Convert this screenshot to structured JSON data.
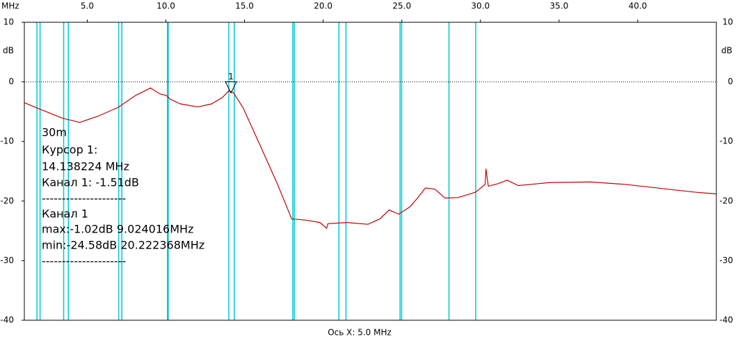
{
  "chart_data": {
    "type": "line",
    "x_unit_label": "MHz",
    "y_unit_label": "dB",
    "xlabel": "Ось X: 5.0 MHz",
    "xlim": [
      1.0,
      45.0
    ],
    "ylim": [
      -40,
      10
    ],
    "xticks": [
      {
        "value": 5,
        "label": "5.0"
      },
      {
        "value": 10,
        "label": "10.0"
      },
      {
        "value": 15,
        "label": "15.0"
      },
      {
        "value": 20,
        "label": "20.0"
      },
      {
        "value": 25,
        "label": "25.0"
      },
      {
        "value": 30,
        "label": "30.0"
      },
      {
        "value": 35,
        "label": "35.0"
      },
      {
        "value": 40,
        "label": "40.0"
      }
    ],
    "yticks": [
      10,
      0,
      -10,
      -20,
      -30,
      -40
    ],
    "hlines": [
      0
    ],
    "band_lines": [
      1.8,
      2.0,
      3.5,
      3.8,
      7.0,
      7.2,
      10.1,
      10.15,
      14.0,
      14.35,
      18.068,
      18.168,
      21.0,
      21.45,
      24.89,
      24.99,
      28.0,
      29.7
    ],
    "band_color": "#00c8d0",
    "series": [
      {
        "color": "#c00000",
        "x": [
          1.0,
          2.1,
          3.43,
          4.53,
          5.64,
          6.96,
          8.06,
          9.02,
          9.6,
          10.05,
          10.27,
          10.93,
          12.04,
          12.9,
          13.6,
          14.0,
          14.29,
          14.9,
          16.0,
          17.1,
          18.0,
          18.9,
          19.8,
          20.22,
          20.3,
          21.5,
          22.85,
          23.6,
          24.2,
          24.8,
          25.5,
          26.0,
          26.5,
          27.1,
          27.75,
          28.6,
          29.7,
          30.3,
          30.35,
          30.5,
          31.1,
          31.7,
          32.4,
          34.4,
          37.0,
          39.2,
          41.9,
          43.6,
          45.0
        ],
        "values": [
          -3.5,
          -4.7,
          -6.1,
          -6.8,
          -5.8,
          -4.3,
          -2.3,
          -1.02,
          -2.0,
          -2.3,
          -2.9,
          -3.7,
          -4.2,
          -3.7,
          -2.6,
          -1.5,
          -1.8,
          -4.3,
          -10.7,
          -17.2,
          -23.0,
          -23.2,
          -23.6,
          -24.58,
          -23.8,
          -23.6,
          -23.9,
          -23.0,
          -21.5,
          -22.2,
          -21.0,
          -19.5,
          -17.8,
          -18.0,
          -19.5,
          -19.4,
          -18.5,
          -17.2,
          -14.6,
          -17.5,
          -17.1,
          -16.5,
          -17.4,
          -16.9,
          -16.8,
          -17.2,
          -18.0,
          -18.5,
          -18.8
        ]
      }
    ],
    "cursor": {
      "label": "1",
      "x": 14.138224,
      "y": -1.51
    },
    "annotations": [
      "30m",
      "Курсор 1:",
      "14.138224 MHz",
      "Канал 1:  -1.51dB",
      "---------------------",
      "Канал 1",
      "max:-1.02dB 9.024016MHz",
      "min:-24.58dB 20.222368MHz",
      "---------------------"
    ]
  }
}
